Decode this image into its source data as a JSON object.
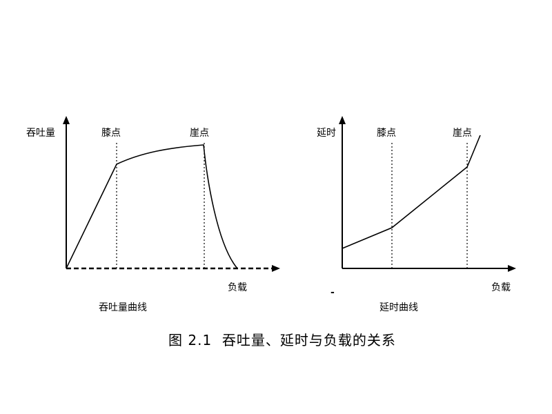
{
  "left_diagram": {
    "y_label": "吞吐量",
    "knee_label": "膝点",
    "cliff_label": "崖点",
    "x_label": "负载",
    "subtitle": "吞吐量曲线"
  },
  "right_diagram": {
    "y_label": "延时",
    "knee_label": "膝点",
    "cliff_label": "崖点",
    "x_label": "负载",
    "subtitle": "延时曲线",
    "stray_mark": "-"
  },
  "caption": "图 2.1  吞吐量、延时与负载的关系"
}
